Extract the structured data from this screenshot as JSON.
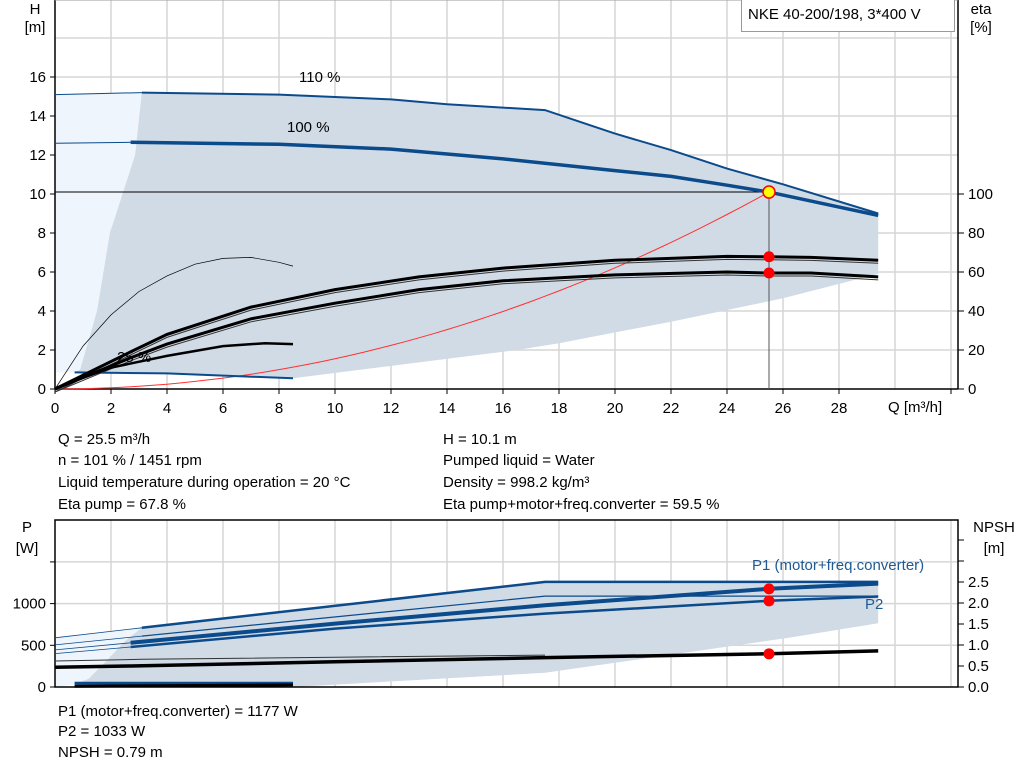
{
  "title": "NKE 40-200/198, 3*400 V",
  "colors": {
    "curve_blue": "#0b4a8b",
    "area": "#d0dbe6",
    "area_light": "#eef5fc",
    "grid": "#d6d6d6",
    "system_curve": "#ff3030",
    "duty_point": "#ff0000",
    "duty_point_fill": "#ffff00"
  },
  "info_top": {
    "left": [
      "Q = 25.5 m³/h",
      "n = 101 % / 1451 rpm",
      "Liquid temperature during operation = 20 °C",
      "Eta pump = 67.8 %"
    ],
    "right": [
      "H = 10.1 m",
      "Pumped liquid = Water",
      "Density = 998.2 kg/m³",
      "Eta pump+motor+freq.converter = 59.5 %"
    ]
  },
  "info_bottom": [
    "P1 (motor+freq.converter) = 1177 W",
    "P2 = 1033 W",
    "NPSH = 0.79 m"
  ],
  "chart_data": [
    {
      "type": "line",
      "title": "NKE 40-200/198, 3*400 V",
      "xlabel": "Q [m³/h]",
      "ylabel": [
        "H",
        "[m]"
      ],
      "y2label": [
        "eta",
        "[%]"
      ],
      "xlim": [
        0,
        32
      ],
      "ylim": [
        0,
        20
      ],
      "y2lim": [
        0,
        100
      ],
      "xticks": [
        0,
        2,
        4,
        6,
        8,
        10,
        12,
        14,
        16,
        18,
        20,
        22,
        24,
        26,
        28
      ],
      "yticks": [
        0,
        2,
        4,
        6,
        8,
        10,
        12,
        14,
        16
      ],
      "y2ticks": [
        0,
        20,
        40,
        60,
        80,
        100
      ],
      "grid": true,
      "series": [
        {
          "name": "110 %",
          "axis": "H",
          "points": [
            [
              0,
              15.1
            ],
            [
              3.1,
              15.2
            ],
            [
              8,
              15.1
            ],
            [
              12,
              14.85
            ],
            [
              14,
              14.6
            ],
            [
              17.5,
              14.3
            ],
            [
              20,
              13.1
            ],
            [
              22,
              12.25
            ],
            [
              24,
              11.3
            ],
            [
              26,
              10.5
            ],
            [
              29.4,
              9.0
            ]
          ]
        },
        {
          "name": "100 %",
          "axis": "H",
          "points": [
            [
              0,
              12.6
            ],
            [
              2.7,
              12.65
            ],
            [
              8,
              12.55
            ],
            [
              12,
              12.3
            ],
            [
              16,
              11.8
            ],
            [
              20,
              11.2
            ],
            [
              22,
              10.9
            ],
            [
              24,
              10.45
            ],
            [
              25.5,
              10.1
            ],
            [
              29.4,
              8.9
            ]
          ]
        },
        {
          "name": "25 %",
          "axis": "H",
          "points": [
            [
              0.7,
              0.85
            ],
            [
              4,
              0.8
            ],
            [
              8.5,
              0.55
            ]
          ]
        },
        {
          "axis": "eta",
          "kind": "eta pump",
          "points": [
            [
              0,
              0
            ],
            [
              2.7,
              19
            ],
            [
              4,
              28
            ],
            [
              7,
              42
            ],
            [
              10,
              51
            ],
            [
              13,
              57.5
            ],
            [
              16,
              62
            ],
            [
              20,
              66
            ],
            [
              24,
              68
            ],
            [
              25.5,
              67.8
            ],
            [
              27,
              67.5
            ],
            [
              29.4,
              66
            ]
          ]
        },
        {
          "axis": "eta",
          "kind": "eta pump+motor+freq.converter",
          "points": [
            [
              0,
              0
            ],
            [
              2.7,
              16
            ],
            [
              4,
              23
            ],
            [
              7,
              36
            ],
            [
              10,
              44
            ],
            [
              13,
              51
            ],
            [
              16,
              55.5
            ],
            [
              20,
              58.5
            ],
            [
              24,
              60
            ],
            [
              25.5,
              59.5
            ],
            [
              27,
              59.5
            ],
            [
              29.4,
              57.5
            ]
          ]
        },
        {
          "axis": "eta",
          "kind": "eta pump 25 %",
          "points": [
            [
              0.5,
              3
            ],
            [
              2,
              11
            ],
            [
              4,
              17
            ],
            [
              6,
              22
            ],
            [
              7.5,
              23.5
            ],
            [
              8.5,
              23
            ]
          ]
        },
        {
          "axis": "eta",
          "kind": "eta pump min speed",
          "points": [
            [
              0,
              0
            ],
            [
              1,
              22
            ],
            [
              2,
              38
            ],
            [
              3,
              50
            ],
            [
              4,
              58
            ],
            [
              5,
              64
            ],
            [
              6,
              67
            ],
            [
              7,
              67.5
            ],
            [
              8,
              65
            ],
            [
              8.5,
              63
            ]
          ]
        }
      ],
      "operating_area_lower": [
        [
          29.4,
          59
        ],
        [
          26,
          46.5
        ],
        [
          22,
          34.5
        ],
        [
          18,
          23.5
        ],
        [
          16.5,
          20
        ],
        [
          8.5,
          5.5
        ]
      ],
      "operating_area_left": [
        [
          0.7,
          0.85
        ],
        [
          0.9,
          1
        ],
        [
          1.5,
          4
        ],
        [
          1.96,
          8
        ],
        [
          2.86,
          12
        ],
        [
          3.1,
          15.2
        ]
      ],
      "system_curve": {
        "Q": 25.5,
        "H": 10.1
      },
      "duty_point": {
        "Q": 25.5,
        "H": 10.1,
        "eta_pump": 67.8,
        "eta_total": 59.5
      }
    },
    {
      "type": "line",
      "ylabel": [
        "P",
        "[W]"
      ],
      "y2label": [
        "NPSH",
        "[m]"
      ],
      "xlim": [
        0,
        32
      ],
      "ylim": [
        0,
        2000
      ],
      "y2lim": [
        0,
        4
      ],
      "yticks": [
        0,
        500,
        1000
      ],
      "y2ticks": [
        0.0,
        0.5,
        1.0,
        1.5,
        2.0,
        2.5
      ],
      "y2ticks_labels": [
        "0.0",
        "0.5",
        "1.0",
        "1.5",
        "2.0",
        "2.5"
      ],
      "grid": true,
      "series": [
        {
          "name": "P1 (motor+freq.converter)",
          "axis": "P",
          "speed": "110 %",
          "points": [
            [
              0,
              590
            ],
            [
              3.1,
              710
            ],
            [
              17.5,
              1260
            ],
            [
              29.4,
              1260
            ]
          ]
        },
        {
          "axis": "P",
          "kind": "P2 110 %",
          "points": [
            [
              0,
              505
            ],
            [
              3.1,
              610
            ],
            [
              17.5,
              1090
            ],
            [
              29.4,
              1090
            ]
          ]
        },
        {
          "name": "P1 (motor+freq.converter)",
          "axis": "P",
          "speed": "100 %",
          "points": [
            [
              0,
              445
            ],
            [
              2.7,
              530
            ],
            [
              10,
              760
            ],
            [
              17.5,
              980
            ],
            [
              25.5,
              1177
            ],
            [
              29.4,
              1240
            ]
          ]
        },
        {
          "name": "P2",
          "axis": "P",
          "speed": "100 %",
          "points": [
            [
              0,
              400
            ],
            [
              2.7,
              480
            ],
            [
              10,
              700
            ],
            [
              17.5,
              880
            ],
            [
              25.5,
              1033
            ],
            [
              29.4,
              1085
            ]
          ]
        },
        {
          "axis": "P",
          "kind": "P 25 %",
          "points": [
            [
              0.7,
              45
            ],
            [
              8.5,
              45
            ]
          ]
        },
        {
          "axis": "NPSH",
          "kind": "NPSH",
          "points": [
            [
              0,
              0.47
            ],
            [
              2.7,
              0.5
            ],
            [
              10,
              0.6
            ],
            [
              17.5,
              0.7
            ],
            [
              25.5,
              0.79
            ],
            [
              29.4,
              0.86
            ]
          ]
        },
        {
          "axis": "NPSH",
          "kind": "NPSH 110 %",
          "points": [
            [
              0,
              0.62
            ],
            [
              3.1,
              0.66
            ],
            [
              17.5,
              0.76
            ]
          ]
        },
        {
          "axis": "NPSH",
          "kind": "NPSH 25 %",
          "points": [
            [
              0.7,
              0.02
            ],
            [
              8.5,
              0.05
            ]
          ]
        }
      ],
      "operating_area_lower": [
        [
          29.4,
          765
        ],
        [
          26.2,
          590
        ],
        [
          17.5,
          170
        ],
        [
          8.5,
          0
        ]
      ],
      "operating_area_left": [
        [
          0.7,
          30
        ],
        [
          1.2,
          100
        ],
        [
          1.8,
          300
        ],
        [
          2.5,
          550
        ],
        [
          3.1,
          710
        ]
      ],
      "duty_point": {
        "Q": 25.5,
        "P1": 1177,
        "P2": 1033,
        "NPSH": 0.79
      }
    }
  ]
}
